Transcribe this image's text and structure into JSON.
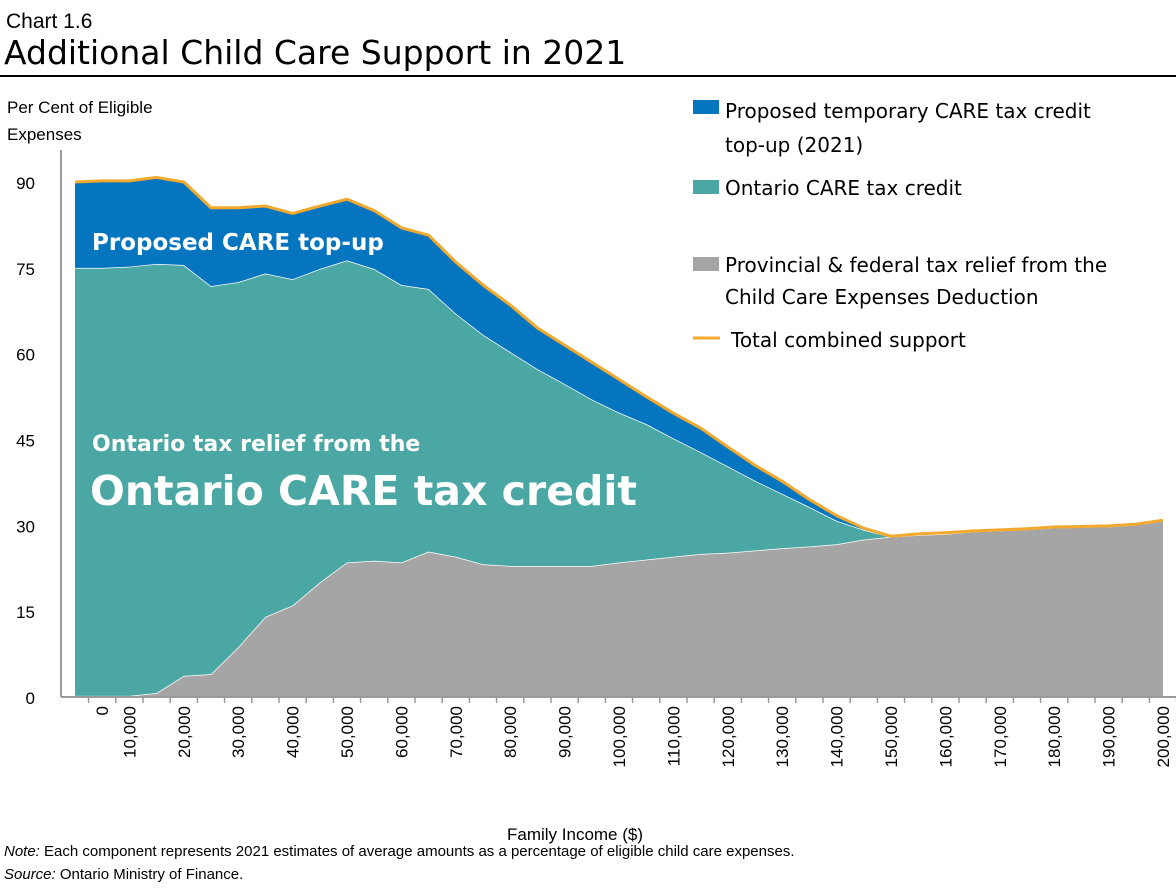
{
  "chart_data": {
    "type": "area",
    "stacked": true,
    "label": "Chart 1.6",
    "title": "Additional Child Care Support in 2021",
    "ylabel_lines": [
      "Per Cent of Eligible",
      "Expenses"
    ],
    "xlabel": "Family Income ($)",
    "ylim": [
      0,
      90
    ],
    "yticks": [
      "0",
      "15",
      "30",
      "45",
      "60",
      "75",
      "90"
    ],
    "xlim": [
      0,
      200000
    ],
    "x": [
      0,
      5000,
      10000,
      15000,
      20000,
      25000,
      30000,
      35000,
      40000,
      45000,
      50000,
      55000,
      60000,
      65000,
      70000,
      75000,
      80000,
      85000,
      90000,
      95000,
      100000,
      105000,
      110000,
      115000,
      120000,
      125000,
      130000,
      135000,
      140000,
      145000,
      150000,
      155000,
      160000,
      165000,
      170000,
      175000,
      180000,
      185000,
      190000,
      195000,
      200000
    ],
    "xticklabels": [
      "0",
      "10,000",
      "20,000",
      "30,000",
      "40,000",
      "50,000",
      "60,000",
      "70,000",
      "80,000",
      "90,000",
      "100,000",
      "110,000",
      "120,000",
      "130,000",
      "140,000",
      "150,000",
      "160,000",
      "170,000",
      "180,000",
      "190,000",
      "200,000"
    ],
    "grid": false,
    "legend_placement": "top-right",
    "series": [
      {
        "name": "Provincial & federal tax relief from the Child Care Expenses Deduction",
        "color": "#A5A5A5",
        "values": [
          0.2,
          0.2,
          0.2,
          0.7,
          3.7,
          4.0,
          8.7,
          14,
          16,
          20,
          23.5,
          23.8,
          23.5,
          25.4,
          24.5,
          23.2,
          22.9,
          22.9,
          22.9,
          22.9,
          23.5,
          24,
          24.5,
          25,
          25.2,
          25.6,
          26,
          26.3,
          26.7,
          27.5,
          28,
          28.3,
          28.5,
          28.9,
          29.1,
          29.3,
          29.6,
          29.7,
          29.8,
          30.1,
          30.8
        ]
      },
      {
        "name": "Ontario CARE tax credit",
        "color": "#4BA7A3",
        "values": [
          74.8,
          74.8,
          75,
          75,
          71.8,
          67.8,
          63.8,
          60,
          57,
          54.8,
          52.8,
          51,
          48.5,
          45.9,
          42.5,
          40.1,
          37.4,
          34.4,
          31.8,
          29.1,
          26.2,
          23.7,
          20.7,
          17.8,
          15.1,
          12.2,
          9.5,
          6.9,
          4.1,
          1.7,
          0,
          0,
          0,
          0,
          0,
          0,
          0,
          0,
          0,
          0,
          0
        ]
      },
      {
        "name": "Proposed temporary CARE tax credit top-up (2021)",
        "color": "#0575BF",
        "values": [
          15,
          15.2,
          15,
          15.1,
          14.5,
          13.7,
          13,
          11.8,
          11.5,
          11,
          10.7,
          10.2,
          10,
          9.4,
          9,
          8.7,
          8.2,
          7.2,
          6.8,
          6.5,
          5.8,
          4.8,
          4.4,
          4.2,
          3.4,
          2.7,
          2.2,
          1.3,
          0.9,
          0.3,
          0.1,
          0.2,
          0.2,
          0.1,
          0.1,
          0.1,
          0.1,
          0.1,
          0.1,
          0.1,
          0.1
        ]
      }
    ],
    "line_series": {
      "name": "Total combined support",
      "color": "#F2A92E"
    },
    "legend": {
      "topup_lines": [
        "Proposed temporary CARE tax credit",
        "top-up (2021)"
      ],
      "ontario": "Ontario CARE tax credit",
      "provincial_lines": [
        "Provincial & federal tax relief from the",
        "Child Care Expenses Deduction"
      ],
      "total": "Total combined support"
    },
    "annotations": {
      "topup": "Proposed CARE  top-up",
      "ontario_line1": "Ontario tax relief from the",
      "ontario_line2": "Ontario CARE tax credit"
    }
  },
  "notes": {
    "note_label": "Note:",
    "note_text": " Each component represents 2021 estimates of average amounts as a percentage of eligible child care expenses.",
    "source_label": "Source:",
    "source_text": " Ontario Ministry of Finance."
  }
}
